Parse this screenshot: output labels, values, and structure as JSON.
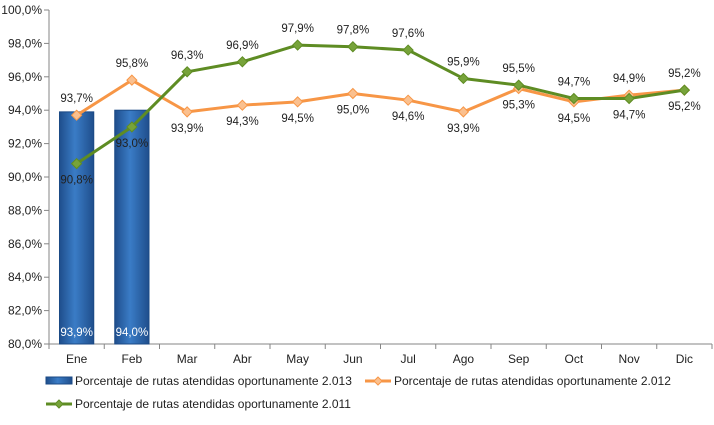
{
  "chart_data": {
    "type": "bar+line",
    "categories": [
      "Ene",
      "Feb",
      "Mar",
      "Abr",
      "May",
      "Jun",
      "Jul",
      "Ago",
      "Sep",
      "Oct",
      "Nov",
      "Dic"
    ],
    "ylim": [
      80,
      100
    ],
    "yticks": [
      "80,0%",
      "82,0%",
      "84,0%",
      "86,0%",
      "88,0%",
      "90,0%",
      "92,0%",
      "94,0%",
      "96,0%",
      "98,0%",
      "100,0%"
    ],
    "legend_position": "bottom",
    "series": [
      {
        "name": "Porcentaje de rutas atendidas oportunamente 2.013",
        "kind": "bar",
        "color": "#2E6EB5",
        "values": [
          93.9,
          94.0,
          null,
          null,
          null,
          null,
          null,
          null,
          null,
          null,
          null,
          null
        ],
        "labels": [
          "93,9%",
          "94,0%",
          "",
          "",
          "",
          "",
          "",
          "",
          "",
          "",
          "",
          ""
        ]
      },
      {
        "name": "Porcentaje de rutas atendidas oportunamente 2.012",
        "kind": "line",
        "color": "#F79646",
        "marker_fill": "#FAC08F",
        "values": [
          93.7,
          95.8,
          93.9,
          94.3,
          94.5,
          95.0,
          94.6,
          93.9,
          95.3,
          94.5,
          94.9,
          95.2
        ],
        "labels": [
          "93,7%",
          "95,8%",
          "93,9%",
          "94,3%",
          "94,5%",
          "95,0%",
          "94,6%",
          "93,9%",
          "95,3%",
          "94,5%",
          "94,9%",
          "95,2%"
        ]
      },
      {
        "name": "Porcentaje de rutas atendidas oportunamente 2.011",
        "kind": "line",
        "color": "#5E8C23",
        "marker_fill": "#77A33A",
        "values": [
          90.8,
          93.0,
          96.3,
          96.9,
          97.9,
          97.8,
          97.6,
          95.9,
          95.5,
          94.7,
          94.7,
          95.2
        ],
        "labels": [
          "90,8%",
          "93,0%",
          "96,3%",
          "96,9%",
          "97,9%",
          "97,8%",
          "97,6%",
          "95,9%",
          "95,5%",
          "94,7%",
          "94,7%",
          "95,2%"
        ]
      }
    ]
  }
}
